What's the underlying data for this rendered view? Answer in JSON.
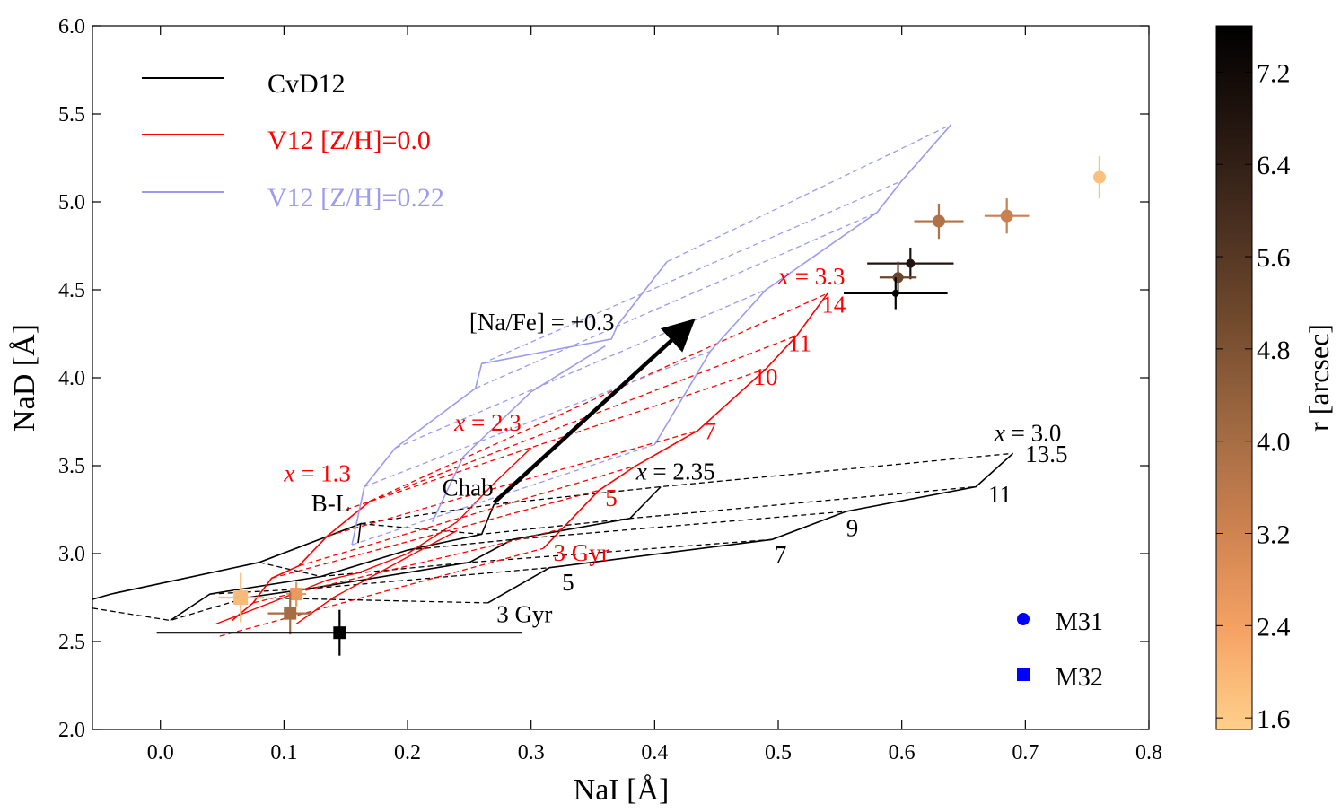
{
  "chart_data": {
    "type": "scatter",
    "xlabel": "NaI [Å]",
    "ylabel": "NaD [Å]",
    "xlim": [
      -0.055,
      0.8
    ],
    "ylim": [
      2.0,
      6.0
    ],
    "x_ticks": [
      0.0,
      0.1,
      0.2,
      0.3,
      0.4,
      0.5,
      0.6,
      0.7,
      0.8
    ],
    "x_tick_labels": [
      "0.0",
      "0.1",
      "0.2",
      "0.3",
      "0.4",
      "0.5",
      "0.6",
      "0.7",
      "0.8"
    ],
    "y_ticks": [
      2.0,
      2.5,
      3.0,
      3.5,
      4.0,
      4.5,
      5.0,
      5.5,
      6.0
    ],
    "y_tick_labels": [
      "2.0",
      "2.5",
      "3.0",
      "3.5",
      "4.0",
      "4.5",
      "5.0",
      "5.5",
      "6.0"
    ],
    "colorbar": {
      "label": "r [arcsec]",
      "range": [
        1.5,
        7.6
      ],
      "ticks": [
        1.6,
        2.4,
        3.2,
        4.0,
        4.8,
        5.6,
        6.4,
        7.2
      ],
      "tick_labels": [
        "1.6",
        "2.4",
        "3.2",
        "4.0",
        "4.8",
        "5.6",
        "6.4",
        "7.2"
      ],
      "colors": [
        "#ffd08a",
        "#f5a264",
        "#cd8250",
        "#a06a42",
        "#744c2e",
        "#4a3020",
        "#241610",
        "#000000"
      ]
    },
    "legend_lines": [
      {
        "label": "CvD12",
        "color": "#000000"
      },
      {
        "label": "V12 [Z/H]=0.0",
        "color": "#ff0000"
      },
      {
        "label": "V12 [Z/H]=0.22",
        "color": "#9b9bf0"
      }
    ],
    "legend_markers": [
      {
        "label": "M31",
        "marker": "circle",
        "color": "#0000ff"
      },
      {
        "label": "M32",
        "marker": "square",
        "color": "#0000ff"
      }
    ],
    "cvd_grid": {
      "color": "#000000",
      "imf_tracks": [
        {
          "name": "B-L",
          "points": [
            [
              -0.055,
              2.74
            ],
            [
              -0.04,
              2.77
            ],
            [
              0.08,
              2.95
            ],
            [
              0.162,
              3.17
            ],
            [
              0.16,
              3.06
            ]
          ]
        },
        {
          "name": "Chab",
          "points": [
            [
              0.008,
              2.62
            ],
            [
              0.04,
              2.77
            ],
            [
              0.13,
              2.87
            ],
            [
              0.2,
              3.02
            ],
            [
              0.26,
              3.11
            ],
            [
              0.27,
              3.28
            ]
          ]
        },
        {
          "name": "x=2.35",
          "points": [
            [
              0.07,
              2.75
            ],
            [
              0.12,
              2.8
            ],
            [
              0.25,
              2.95
            ],
            [
              0.285,
              3.08
            ],
            [
              0.38,
              3.2
            ],
            [
              0.405,
              3.38
            ]
          ]
        },
        {
          "name": "x=3.0",
          "points": [
            [
              0.265,
              2.72
            ],
            [
              0.315,
              2.92
            ],
            [
              0.495,
              3.08
            ],
            [
              0.555,
              3.24
            ],
            [
              0.66,
              3.38
            ],
            [
              0.69,
              3.57
            ]
          ]
        }
      ],
      "dashed": [
        [
          [
            -0.055,
            2.69
          ],
          [
            0.008,
            2.62
          ],
          [
            0.07,
            2.75
          ],
          [
            0.265,
            2.72
          ]
        ],
        [
          [
            0.04,
            2.77
          ],
          [
            0.12,
            2.8
          ],
          [
            0.315,
            2.92
          ]
        ],
        [
          [
            0.08,
            2.95
          ],
          [
            0.13,
            2.87
          ],
          [
            0.25,
            2.95
          ],
          [
            0.495,
            3.08
          ]
        ],
        [
          [
            0.2,
            3.02
          ],
          [
            0.285,
            3.08
          ],
          [
            0.555,
            3.24
          ]
        ],
        [
          [
            0.162,
            3.17
          ],
          [
            0.26,
            3.11
          ],
          [
            0.38,
            3.2
          ],
          [
            0.66,
            3.38
          ]
        ],
        [
          [
            0.162,
            3.17
          ],
          [
            0.27,
            3.28
          ],
          [
            0.405,
            3.38
          ],
          [
            0.69,
            3.57
          ]
        ]
      ]
    },
    "v12_z0_grid": {
      "color": "#ff0000",
      "imf_tracks": [
        {
          "name": "x=1.3",
          "points": [
            [
              0.058,
              2.62
            ],
            [
              0.075,
              2.72
            ],
            [
              0.09,
              2.86
            ],
            [
              0.112,
              2.93
            ],
            [
              0.135,
              3.1
            ],
            [
              0.17,
              3.3
            ]
          ]
        },
        {
          "name": "x=3.3",
          "points": [
            [
              0.31,
              3.03
            ],
            [
              0.325,
              3.14
            ],
            [
              0.355,
              3.36
            ],
            [
              0.385,
              3.5
            ],
            [
              0.435,
              3.7
            ],
            [
              0.49,
              4.05
            ],
            [
              0.515,
              4.24
            ],
            [
              0.54,
              4.48
            ]
          ]
        }
      ],
      "dashed": [
        [
          [
            0.048,
            2.53
          ],
          [
            0.31,
            3.03
          ]
        ],
        [
          [
            0.075,
            2.72
          ],
          [
            0.325,
            3.14
          ]
        ],
        [
          [
            0.09,
            2.86
          ],
          [
            0.355,
            3.36
          ]
        ],
        [
          [
            0.112,
            2.93
          ],
          [
            0.385,
            3.5
          ]
        ],
        [
          [
            0.135,
            3.1
          ],
          [
            0.435,
            3.7
          ]
        ],
        [
          [
            0.15,
            3.25
          ],
          [
            0.49,
            4.05
          ]
        ],
        [
          [
            0.17,
            3.3
          ],
          [
            0.515,
            4.24
          ]
        ],
        [
          [
            0.17,
            3.3
          ],
          [
            0.54,
            4.48
          ]
        ]
      ],
      "extra_solid": [
        [
          [
            0.045,
            2.6
          ],
          [
            0.1,
            2.75
          ],
          [
            0.135,
            2.85
          ],
          [
            0.16,
            2.89
          ],
          [
            0.2,
            3.0
          ],
          [
            0.24,
            3.18
          ],
          [
            0.27,
            3.4
          ],
          [
            0.3,
            3.6
          ]
        ],
        [
          [
            0.11,
            2.6
          ],
          [
            0.14,
            2.75
          ],
          [
            0.2,
            2.98
          ],
          [
            0.24,
            3.13
          ]
        ]
      ]
    },
    "v12_z022_grid": {
      "color": "#9b9bf0",
      "imf_tracks": [
        {
          "name": "x=1.3",
          "points": [
            [
              0.155,
              3.05
            ],
            [
              0.165,
              3.38
            ],
            [
              0.19,
              3.6
            ],
            [
              0.255,
              3.94
            ],
            [
              0.26,
              4.08
            ],
            [
              0.365,
              4.22
            ],
            [
              0.37,
              4.3
            ],
            [
              0.41,
              4.66
            ]
          ]
        },
        {
          "name": "x=3.3",
          "points": [
            [
              0.4,
              3.62
            ],
            [
              0.445,
              4.15
            ],
            [
              0.49,
              4.5
            ],
            [
              0.58,
              4.94
            ],
            [
              0.6,
              5.12
            ],
            [
              0.64,
              5.44
            ]
          ]
        },
        {
          "name": "mid1",
          "points": [
            [
              0.22,
              3.18
            ],
            [
              0.245,
              3.55
            ],
            [
              0.3,
              3.92
            ],
            [
              0.36,
              4.18
            ]
          ]
        }
      ],
      "dashed": [
        [
          [
            0.155,
            3.05
          ],
          [
            0.4,
            3.62
          ]
        ],
        [
          [
            0.165,
            3.38
          ],
          [
            0.445,
            4.15
          ]
        ],
        [
          [
            0.19,
            3.6
          ],
          [
            0.49,
            4.5
          ]
        ],
        [
          [
            0.255,
            3.94
          ],
          [
            0.58,
            4.94
          ]
        ],
        [
          [
            0.26,
            4.08
          ],
          [
            0.6,
            5.12
          ]
        ],
        [
          [
            0.41,
            4.66
          ],
          [
            0.64,
            5.44
          ]
        ]
      ]
    },
    "grid_labels": [
      {
        "text": "B-L",
        "x": 0.122,
        "y": 3.24,
        "color": "#000000",
        "italic": false
      },
      {
        "text": "Chab",
        "x": 0.228,
        "y": 3.33,
        "color": "#000000",
        "italic": false
      },
      {
        "text": "x = 2.35",
        "x": 0.385,
        "y": 3.42,
        "color": "#000000",
        "italic": true
      },
      {
        "text": "x = 3.0",
        "x": 0.675,
        "y": 3.64,
        "color": "#000000",
        "italic": true
      },
      {
        "text": "13.5",
        "x": 0.7,
        "y": 3.52,
        "color": "#000000",
        "italic": false
      },
      {
        "text": "11",
        "x": 0.67,
        "y": 3.29,
        "color": "#000000",
        "italic": false
      },
      {
        "text": "9",
        "x": 0.555,
        "y": 3.1,
        "color": "#000000",
        "italic": false
      },
      {
        "text": "7",
        "x": 0.497,
        "y": 2.95,
        "color": "#000000",
        "italic": false
      },
      {
        "text": "5",
        "x": 0.325,
        "y": 2.79,
        "color": "#000000",
        "italic": false
      },
      {
        "text": "3 Gyr",
        "x": 0.272,
        "y": 2.61,
        "color": "#000000",
        "italic": false
      },
      {
        "text": "x = 1.3",
        "x": 0.1,
        "y": 3.41,
        "color": "#ff0000",
        "italic": true
      },
      {
        "text": "x = 2.3",
        "x": 0.238,
        "y": 3.7,
        "color": "#ff0000",
        "italic": true
      },
      {
        "text": "x = 3.3",
        "x": 0.5,
        "y": 4.53,
        "color": "#ff0000",
        "italic": true
      },
      {
        "text": "14",
        "x": 0.535,
        "y": 4.37,
        "color": "#ff0000",
        "italic": false
      },
      {
        "text": "11",
        "x": 0.508,
        "y": 4.15,
        "color": "#ff0000",
        "italic": false
      },
      {
        "text": "10",
        "x": 0.48,
        "y": 3.96,
        "color": "#ff0000",
        "italic": false
      },
      {
        "text": "7",
        "x": 0.44,
        "y": 3.65,
        "color": "#ff0000",
        "italic": false
      },
      {
        "text": "5",
        "x": 0.36,
        "y": 3.27,
        "color": "#ff0000",
        "italic": false
      },
      {
        "text": "3 Gyr",
        "x": 0.318,
        "y": 2.96,
        "color": "#ff0000",
        "italic": false
      }
    ],
    "arrow": {
      "label": "[Na/Fe] = +0.3",
      "from": [
        0.27,
        3.29
      ],
      "to": [
        0.43,
        4.32
      ],
      "label_x": 0.25,
      "label_y": 4.27
    },
    "m31_points": [
      {
        "x": 0.63,
        "y": 4.89,
        "xerr": 0.02,
        "yerr": 0.1,
        "r": 3.8,
        "size": 7
      },
      {
        "x": 0.685,
        "y": 4.92,
        "xerr": 0.018,
        "yerr": 0.1,
        "r": 3.3,
        "size": 7
      },
      {
        "x": 0.76,
        "y": 5.14,
        "xerr": 0.0,
        "yerr": 0.12,
        "r": 1.8,
        "size": 7
      },
      {
        "x": 0.607,
        "y": 4.65,
        "xerr": 0.035,
        "yerr": 0.09,
        "r": 6.8,
        "size": 5
      },
      {
        "x": 0.597,
        "y": 4.57,
        "xerr": 0.015,
        "yerr": 0.09,
        "r": 5.2,
        "size": 6
      },
      {
        "x": 0.595,
        "y": 4.48,
        "xerr": 0.042,
        "yerr": 0.09,
        "r": 7.6,
        "size": 4
      }
    ],
    "m32_points": [
      {
        "x": 0.065,
        "y": 2.75,
        "xerr": 0.018,
        "yerr": 0.14,
        "r": 1.9,
        "size": 8
      },
      {
        "x": 0.11,
        "y": 2.77,
        "xerr": 0.008,
        "yerr": 0.07,
        "r": 2.6,
        "size": 7
      },
      {
        "x": 0.105,
        "y": 2.66,
        "xerr": 0.018,
        "yerr": 0.12,
        "r": 4.0,
        "size": 7
      },
      {
        "x": 0.145,
        "y": 2.55,
        "xerr": 0.148,
        "yerr": 0.13,
        "r": 7.6,
        "size": 7
      }
    ]
  }
}
